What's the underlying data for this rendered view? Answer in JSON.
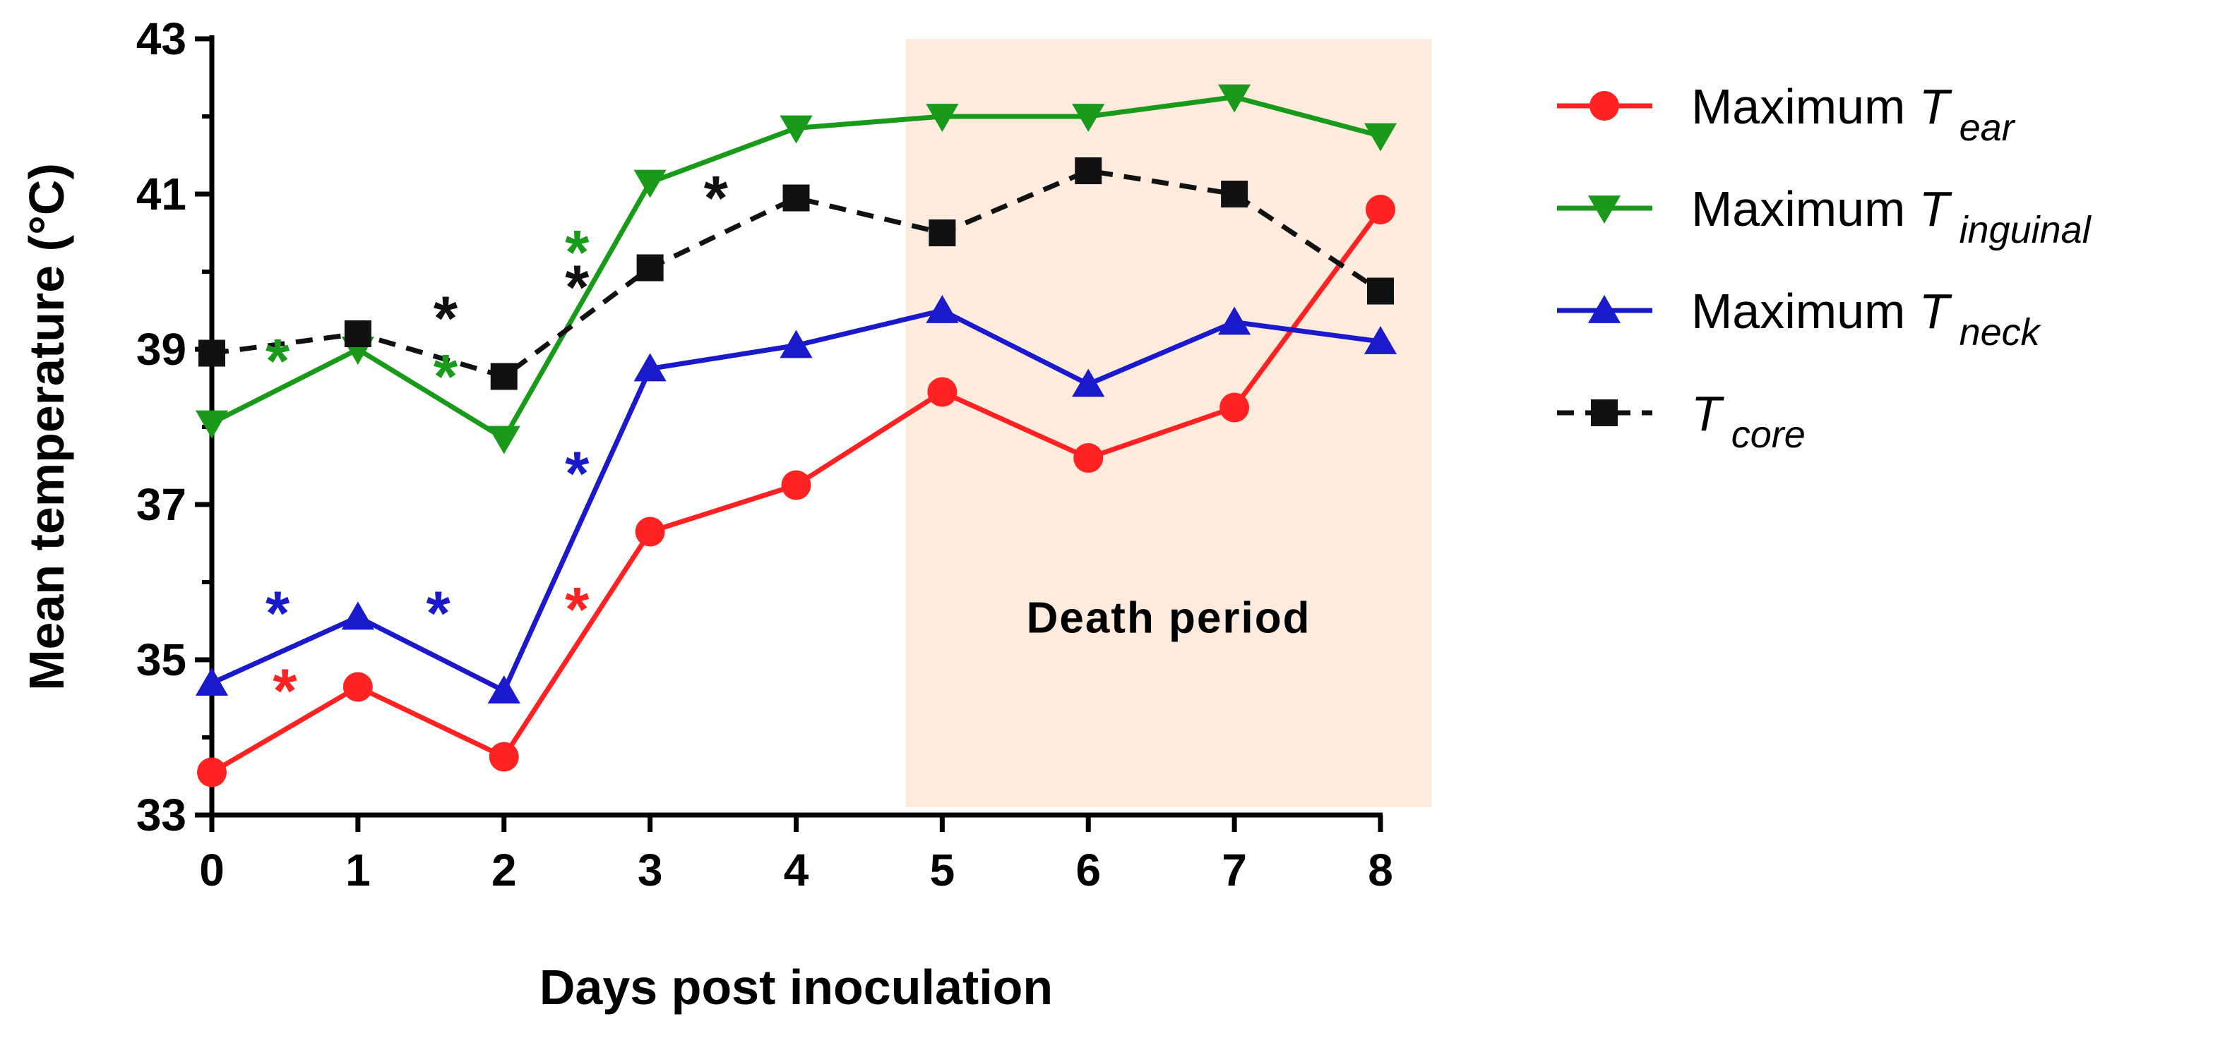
{
  "chart_data": {
    "type": "line",
    "title": "",
    "xlabel": "Days post inoculation",
    "ylabel": "Mean temperature (°C)",
    "x": [
      0,
      1,
      2,
      3,
      4,
      5,
      6,
      7,
      8
    ],
    "xlim": [
      0,
      8
    ],
    "ylim": [
      33,
      43
    ],
    "yticks": [
      33,
      35,
      37,
      39,
      41,
      43
    ],
    "grid": false,
    "legend_position": "right",
    "series": [
      {
        "name": "Maximum T ear",
        "label_main": "Maximum ",
        "label_t": "T",
        "label_sub": "ear",
        "color": "#ff2222",
        "marker": "circle",
        "line": "solid",
        "values": [
          33.55,
          34.65,
          33.75,
          36.65,
          37.25,
          38.45,
          37.6,
          38.25,
          40.8
        ]
      },
      {
        "name": "Maximum T inguinal",
        "label_main": "Maximum ",
        "label_t": "T",
        "label_sub": "inguinal",
        "color": "#1a9a1a",
        "marker": "triangle-down",
        "line": "solid",
        "values": [
          38.05,
          39.0,
          37.85,
          41.15,
          41.85,
          42.0,
          42.0,
          42.25,
          41.75
        ]
      },
      {
        "name": "Maximum T neck",
        "label_main": "Maximum ",
        "label_t": "T",
        "label_sub": "neck",
        "color": "#1a1acc",
        "marker": "triangle-up",
        "line": "solid",
        "values": [
          34.7,
          35.55,
          34.6,
          38.75,
          39.05,
          39.5,
          38.55,
          39.35,
          39.1
        ]
      },
      {
        "name": "T core",
        "label_main": "",
        "label_t": "T",
        "label_sub": "core",
        "color": "#111111",
        "marker": "square",
        "line": "dashed",
        "values": [
          38.95,
          39.2,
          38.65,
          40.05,
          40.95,
          40.5,
          41.3,
          41.0,
          39.75
        ]
      }
    ],
    "shaded_region": {
      "x_start": 4.75,
      "x_end": 8.35,
      "y_start": 33.1,
      "y_end": 43,
      "label": "Death period",
      "label_x": 6.55,
      "label_y": 35.5,
      "color": "#fdebdd"
    },
    "annotations": [
      {
        "text": "*",
        "x": 0.45,
        "y": 35.6,
        "color": "#1a1acc"
      },
      {
        "text": "*",
        "x": 1.55,
        "y": 35.6,
        "color": "#1a1acc"
      },
      {
        "text": "*",
        "x": 2.5,
        "y": 37.4,
        "color": "#1a1acc"
      },
      {
        "text": "*",
        "x": 0.5,
        "y": 34.6,
        "color": "#ff2222"
      },
      {
        "text": "*",
        "x": 2.5,
        "y": 35.65,
        "color": "#ff2222"
      },
      {
        "text": "*",
        "x": 0.45,
        "y": 38.85,
        "color": "#1a9a1a"
      },
      {
        "text": "*",
        "x": 1.6,
        "y": 38.65,
        "color": "#1a9a1a"
      },
      {
        "text": "*",
        "x": 2.5,
        "y": 40.25,
        "color": "#1a9a1a"
      },
      {
        "text": "*",
        "x": 1.6,
        "y": 39.4,
        "color": "#111111"
      },
      {
        "text": "*",
        "x": 2.5,
        "y": 39.8,
        "color": "#111111"
      },
      {
        "text": "*",
        "x": 3.45,
        "y": 40.95,
        "color": "#111111"
      }
    ]
  }
}
